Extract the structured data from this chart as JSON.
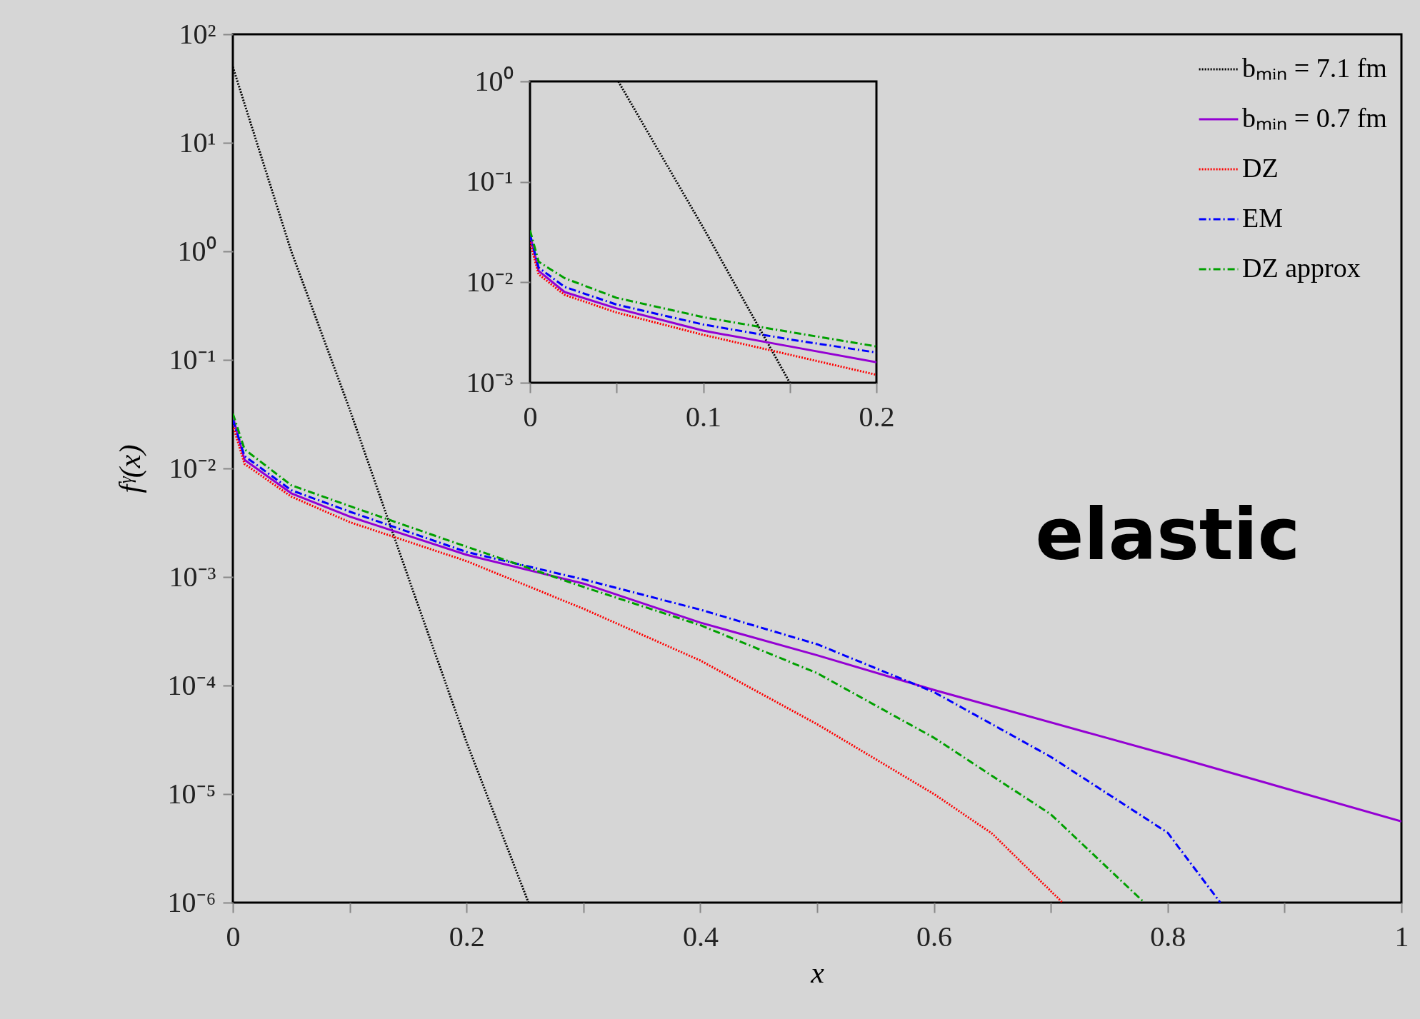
{
  "chart_data": [
    {
      "type": "line",
      "xlabel": "x",
      "ylabel": "fᵞ(x)",
      "annotations": [
        "elastic"
      ],
      "log": "y",
      "legend": "top right",
      "xlim": [
        0,
        1
      ],
      "ylim": [
        1e-06,
        100
      ],
      "xticks": [
        0,
        {
          "value": 0.1,
          "label": null
        },
        0.2,
        {
          "value": 0.3,
          "label": null
        },
        0.4,
        {
          "value": 0.5,
          "label": null
        },
        0.6,
        {
          "value": 0.7,
          "label": null
        },
        0.8,
        {
          "value": 0.9,
          "label": null
        },
        1
      ],
      "yticks": [
        {
          "value": 1e-06,
          "label": "10⁻⁶"
        },
        {
          "value": 1e-05,
          "label": "10⁻⁵"
        },
        {
          "value": 0.0001,
          "label": "10⁻⁴"
        },
        {
          "value": 0.001,
          "label": "10⁻³"
        },
        {
          "value": 0.01,
          "label": "10⁻²"
        },
        {
          "value": 0.1,
          "label": "10⁻¹"
        },
        {
          "value": 1,
          "label": "10⁰"
        },
        {
          "value": 10,
          "label": "10¹"
        },
        {
          "value": 100,
          "label": "10²"
        }
      ],
      "series": [
        {
          "name": "bₘᵢₙ = 7.1 fm",
          "color": "#000000",
          "line_style": "dotted",
          "x": [
            0,
            0.05,
            0.1,
            0.15,
            0.2,
            0.253
          ],
          "values": [
            50,
            1,
            0.035,
            0.001,
            3e-05,
            1e-06
          ]
        },
        {
          "name": "bₘᵢₙ = 0.7 fm",
          "color": "#9400d3",
          "line_style": "solid",
          "x": [
            0,
            0.01,
            0.05,
            0.1,
            0.2,
            0.3,
            0.4,
            0.5,
            0.6,
            0.8,
            1
          ],
          "values": [
            0.03,
            0.012,
            0.0059,
            0.0036,
            0.0016,
            0.00087,
            0.00038,
            0.00019,
            9.1e-05,
            2.3e-05,
            5.6e-06
          ]
        },
        {
          "name": "DZ",
          "color": "#ff0000",
          "line_style": "dotted",
          "x": [
            0,
            0.01,
            0.05,
            0.1,
            0.2,
            0.3,
            0.4,
            0.5,
            0.6,
            0.65,
            0.71
          ],
          "values": [
            0.025,
            0.011,
            0.0055,
            0.0032,
            0.0014,
            0.00051,
            0.00017,
            4.4e-05,
            1e-05,
            4.3e-06,
            1e-06
          ]
        },
        {
          "name": "EM",
          "color": "#0000ff",
          "line_style": "dashed",
          "x": [
            0,
            0.01,
            0.05,
            0.1,
            0.2,
            0.3,
            0.4,
            0.5,
            0.6,
            0.7,
            0.8,
            0.845
          ],
          "values": [
            0.028,
            0.013,
            0.0063,
            0.004,
            0.0017,
            0.00095,
            0.0005,
            0.00024,
            8.7e-05,
            2.2e-05,
            4.4e-06,
            1e-06
          ]
        },
        {
          "name": "DZ approx",
          "color": "#00a000",
          "line_style": "dashed",
          "x": [
            0,
            0.01,
            0.05,
            0.1,
            0.2,
            0.3,
            0.4,
            0.5,
            0.6,
            0.7,
            0.78
          ],
          "values": [
            0.032,
            0.015,
            0.007,
            0.0045,
            0.0019,
            0.00081,
            0.00036,
            0.00013,
            3.3e-05,
            6.5e-06,
            1e-06
          ]
        }
      ]
    },
    {
      "type": "line",
      "log": "y",
      "xlim": [
        0,
        0.2
      ],
      "ylim": [
        0.001,
        1
      ],
      "xticks": [
        0,
        {
          "value": 0.05,
          "label": null
        },
        0.1,
        {
          "value": 0.15,
          "label": null
        },
        0.2
      ],
      "yticks": [
        {
          "value": 0.001,
          "label": "10⁻³"
        },
        {
          "value": 0.01,
          "label": "10⁻²"
        },
        {
          "value": 0.1,
          "label": "10⁻¹"
        },
        {
          "value": 1,
          "label": "10⁰"
        }
      ],
      "series": [
        {
          "color": "#000000",
          "line_style": "dotted",
          "x": [
            0.051,
            0.1,
            0.15
          ],
          "values": [
            1,
            0.035,
            0.001
          ]
        },
        {
          "color": "#9400d3",
          "line_style": "solid",
          "x": [
            0,
            0.005,
            0.02,
            0.05,
            0.1,
            0.15,
            0.2
          ],
          "values": [
            0.03,
            0.013,
            0.008,
            0.0055,
            0.0033,
            0.0023,
            0.0016
          ]
        },
        {
          "color": "#ff0000",
          "line_style": "dotted",
          "x": [
            0,
            0.005,
            0.02,
            0.05,
            0.1,
            0.15,
            0.2
          ],
          "values": [
            0.025,
            0.012,
            0.0075,
            0.005,
            0.003,
            0.0019,
            0.0012
          ]
        },
        {
          "color": "#0000ff",
          "line_style": "dashed",
          "x": [
            0,
            0.005,
            0.02,
            0.05,
            0.1,
            0.15,
            0.2
          ],
          "values": [
            0.03,
            0.014,
            0.009,
            0.006,
            0.0038,
            0.0027,
            0.002
          ]
        },
        {
          "color": "#00a000",
          "line_style": "dashed",
          "x": [
            0,
            0.005,
            0.02,
            0.05,
            0.1,
            0.15,
            0.2
          ],
          "values": [
            0.033,
            0.016,
            0.011,
            0.007,
            0.0045,
            0.0032,
            0.0023
          ]
        }
      ]
    }
  ]
}
